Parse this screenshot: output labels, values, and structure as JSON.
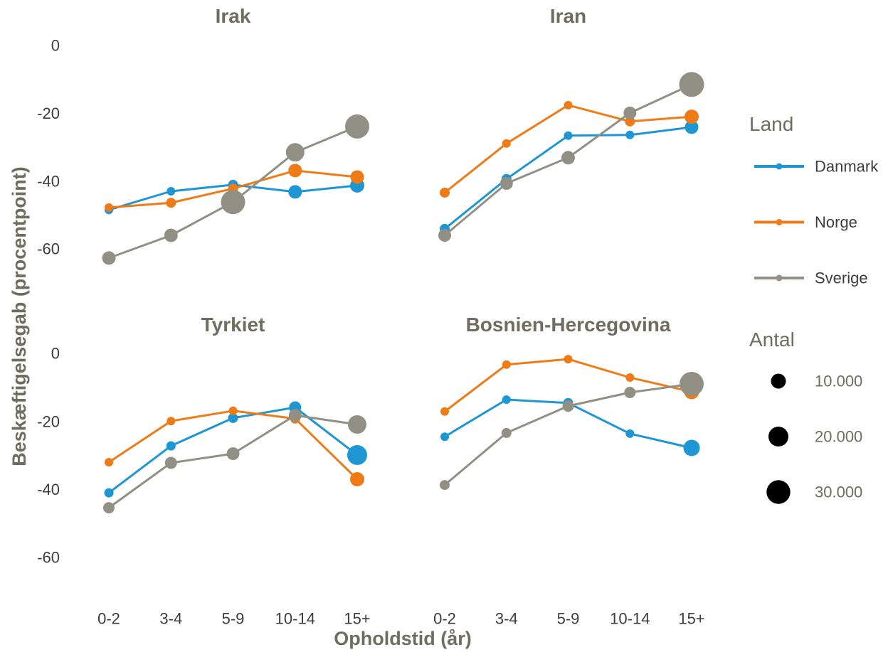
{
  "chart_data": {
    "type": "line",
    "xlabel": "Opholdstid (år)",
    "ylabel": "Beskæftigelsegab (procentpoint)",
    "categories": [
      "0-2",
      "3-4",
      "5-9",
      "10-14",
      "15+"
    ],
    "yticks": [
      0,
      -20,
      -40,
      -60
    ],
    "ylim": [
      -66,
      4
    ],
    "grid": false,
    "legend": {
      "placement": "right",
      "color_title": "Land",
      "color_items": [
        {
          "name": "Danmark",
          "color": "#1d96d3"
        },
        {
          "name": "Norge",
          "color": "#ef7b17"
        },
        {
          "name": "Sverige",
          "color": "#928f84"
        }
      ],
      "size_title": "Antal",
      "size_items": [
        {
          "label": "10.000",
          "n": 10000
        },
        {
          "label": "20.000",
          "n": 20000
        },
        {
          "label": "30.000",
          "n": 30000
        }
      ]
    },
    "panels": [
      {
        "title": "Irak",
        "series": [
          {
            "name": "Danmark",
            "values": [
              -48.5,
              -43.0,
              -41.1,
              -43.2,
              -41.3
            ],
            "n": [
              2200,
              2200,
              3500,
              7800,
              8900
            ]
          },
          {
            "name": "Norge",
            "values": [
              -47.8,
              -46.4,
              -42.2,
              -36.9,
              -38.8
            ],
            "n": [
              2200,
              3500,
              3500,
              7800,
              7800
            ]
          },
          {
            "name": "Sverige",
            "values": [
              -62.7,
              -56.0,
              -46.2,
              -31.5,
              -23.9
            ],
            "n": [
              7800,
              7800,
              31100,
              16700,
              31100
            ]
          }
        ]
      },
      {
        "title": "Iran",
        "series": [
          {
            "name": "Danmark",
            "values": [
              -54.1,
              -39.4,
              -26.6,
              -26.4,
              -24.1
            ],
            "n": [
              3500,
              3500,
              2200,
              2200,
              7800
            ]
          },
          {
            "name": "Norge",
            "values": [
              -43.4,
              -28.9,
              -17.6,
              -22.4,
              -21.0
            ],
            "n": [
              3500,
              2200,
              2200,
              3500,
              8900
            ]
          },
          {
            "name": "Sverige",
            "values": [
              -56.0,
              -40.7,
              -33.1,
              -19.9,
              -11.5
            ],
            "n": [
              6800,
              6800,
              7800,
              6800,
              33300
            ]
          }
        ]
      },
      {
        "title": "Tyrkiet",
        "series": [
          {
            "name": "Danmark",
            "values": [
              -41.0,
              -27.2,
              -19.0,
              -15.9,
              -29.9
            ],
            "n": [
              2800,
              2800,
              3500,
              5800,
              19900
            ]
          },
          {
            "name": "Norge",
            "values": [
              -32.0,
              -19.9,
              -16.9,
              -19.2,
              -37.0
            ],
            "n": [
              2200,
              2200,
              2200,
              3500,
              8900
            ]
          },
          {
            "name": "Sverige",
            "values": [
              -45.4,
              -32.2,
              -29.5,
              -18.2,
              -20.9
            ],
            "n": [
              5000,
              5800,
              6800,
              6800,
              16700
            ]
          }
        ]
      },
      {
        "title": "Bosnien-Hercegovina",
        "series": [
          {
            "name": "Danmark",
            "values": [
              -24.5,
              -13.6,
              -14.6,
              -23.6,
              -27.8
            ],
            "n": [
              2200,
              2200,
              3500,
              2200,
              12500
            ]
          },
          {
            "name": "Norge",
            "values": [
              -17.1,
              -3.3,
              -1.7,
              -7.1,
              -11.3
            ],
            "n": [
              2200,
              2200,
              2200,
              2200,
              10000
            ]
          },
          {
            "name": "Sverige",
            "values": [
              -38.7,
              -23.4,
              -15.5,
              -11.5,
              -9.0
            ],
            "n": [
              3500,
              3500,
              5000,
              5000,
              31100
            ]
          }
        ]
      }
    ]
  }
}
